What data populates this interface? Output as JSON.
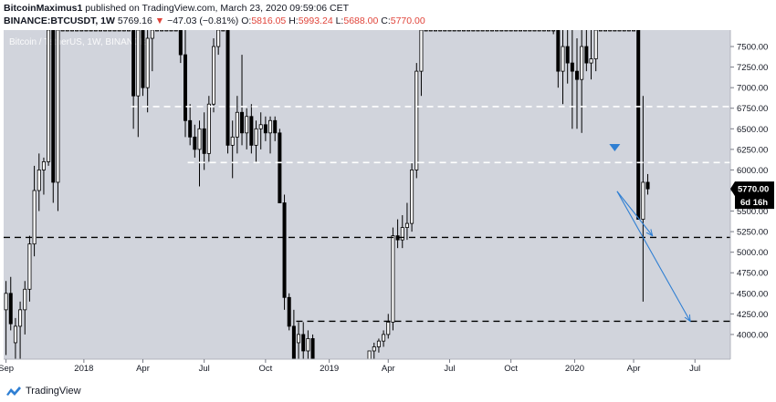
{
  "header": {
    "author": "BitcoinMaximus1",
    "published_text": "published on TradingView.com, March 23, 2020 09:59:06 CET",
    "symbol": "BINANCE:BTCUSDT, 1W",
    "last": "5769.16",
    "change": "−47.03 (−0.81%)",
    "open_label": "O:",
    "open": "5816.05",
    "high_label": "H:",
    "high": "5993.24",
    "low_label": "L:",
    "low": "5688.00",
    "close_label": "C:",
    "close": "5770.00"
  },
  "footer": {
    "brand": "TradingView",
    "logo_icon": "tradingview-logo-icon"
  },
  "colors": {
    "background": "#d1d4dc",
    "candle_border": "#000000",
    "up_fill": "#ffffff",
    "down_fill": "#000000",
    "arrow": "#2f7fd3",
    "white_level": "#ffffff",
    "black_level": "#000000",
    "price_label_bg": "#000000"
  },
  "chart_data": {
    "type": "candlestick",
    "watermark": "Bitcoin / TetherUS, 1W, BINANCE",
    "ylim": [
      3700,
      7700
    ],
    "y_ticks": [
      "7500.00",
      "7250.00",
      "7000.00",
      "6750.00",
      "6500.00",
      "6250.00",
      "6000.00",
      "5750.00",
      "5500.00",
      "5250.00",
      "5000.00",
      "4750.00",
      "4500.00",
      "4250.00",
      "4000.00"
    ],
    "x_range_weeks": [
      0,
      154
    ],
    "x_ticks": [
      {
        "label": "Sep",
        "week": 0.5
      },
      {
        "label": "2018",
        "week": 17
      },
      {
        "label": "Apr",
        "week": 29.5
      },
      {
        "label": "Jul",
        "week": 42.5
      },
      {
        "label": "Oct",
        "week": 55.5
      },
      {
        "label": "2019",
        "week": 69
      },
      {
        "label": "Apr",
        "week": 81.5
      },
      {
        "label": "Jul",
        "week": 94.5
      },
      {
        "label": "Oct",
        "week": 107.5
      },
      {
        "label": "2020",
        "week": 121
      },
      {
        "label": "Apr",
        "week": 133.5
      },
      {
        "label": "Jul",
        "week": 146.5
      }
    ],
    "current_price_label": "5770.00",
    "countdown_label": "6d 16h",
    "horizontal_levels": [
      {
        "price": 6770,
        "color": "white",
        "from_week": 27,
        "to_week": 154
      },
      {
        "price": 6090,
        "color": "white",
        "from_week": 39,
        "to_week": 154
      },
      {
        "price": 5180,
        "color": "black",
        "from_week": 0,
        "to_week": 154
      },
      {
        "price": 4160,
        "color": "black",
        "from_week": 62,
        "to_week": 154
      }
    ],
    "arrows": [
      {
        "from": [
          130,
          5740
        ],
        "to": [
          137.5,
          5200
        ]
      },
      {
        "from": [
          130,
          5740
        ],
        "to": [
          145.5,
          4160
        ]
      }
    ],
    "marker": {
      "week": 129.5,
      "price": 6270,
      "shape": "down-triangle"
    },
    "candles": [
      {
        "o": 4300,
        "h": 4650,
        "l": 3750,
        "c": 4500
      },
      {
        "o": 4500,
        "h": 4700,
        "l": 4050,
        "c": 4130
      },
      {
        "o": 3900,
        "h": 4200,
        "l": 3700,
        "c": 4100
      },
      {
        "o": 4100,
        "h": 4400,
        "l": 3700,
        "c": 4300
      },
      {
        "o": 4300,
        "h": 4650,
        "l": 4000,
        "c": 4550
      },
      {
        "o": 4550,
        "h": 5200,
        "l": 4400,
        "c": 5100
      },
      {
        "o": 5100,
        "h": 6050,
        "l": 4950,
        "c": 5750
      },
      {
        "o": 5750,
        "h": 6200,
        "l": 5500,
        "c": 6000
      },
      {
        "o": 6000,
        "h": 6150,
        "l": 5700,
        "c": 6100
      },
      {
        "o": 6100,
        "h": 7700,
        "l": 6050,
        "c": 7700
      },
      {
        "o": 7700,
        "h": 7700,
        "l": 5600,
        "c": 5850
      },
      {
        "o": 5850,
        "h": 7700,
        "l": 5500,
        "c": 7700
      },
      {
        "o": 7700,
        "h": 7700,
        "l": 7700,
        "c": 7700
      },
      {
        "o": 7700,
        "h": 7700,
        "l": 7700,
        "c": 7700
      },
      {
        "o": 7700,
        "h": 7700,
        "l": 7700,
        "c": 7700
      },
      {
        "o": 7700,
        "h": 7700,
        "l": 7700,
        "c": 7700
      },
      {
        "o": 7700,
        "h": 7700,
        "l": 7700,
        "c": 7700
      },
      {
        "o": 7700,
        "h": 7700,
        "l": 7700,
        "c": 7700
      },
      {
        "o": 7700,
        "h": 7700,
        "l": 7700,
        "c": 7700
      },
      {
        "o": 7700,
        "h": 7700,
        "l": 7700,
        "c": 7700
      },
      {
        "o": 7700,
        "h": 7700,
        "l": 7700,
        "c": 7700
      },
      {
        "o": 7700,
        "h": 7700,
        "l": 7700,
        "c": 7700
      },
      {
        "o": 7700,
        "h": 7700,
        "l": 7700,
        "c": 7700
      },
      {
        "o": 7700,
        "h": 7700,
        "l": 7700,
        "c": 7700
      },
      {
        "o": 7700,
        "h": 7700,
        "l": 7700,
        "c": 7700
      },
      {
        "o": 7700,
        "h": 7700,
        "l": 7700,
        "c": 7700
      },
      {
        "o": 7700,
        "h": 7700,
        "l": 7700,
        "c": 7700
      },
      {
        "o": 7700,
        "h": 7700,
        "l": 6500,
        "c": 6900
      },
      {
        "o": 6900,
        "h": 7700,
        "l": 6400,
        "c": 7700
      },
      {
        "o": 7700,
        "h": 7700,
        "l": 6900,
        "c": 7000
      },
      {
        "o": 7000,
        "h": 7700,
        "l": 6700,
        "c": 7600
      },
      {
        "o": 7600,
        "h": 7700,
        "l": 7200,
        "c": 7700
      },
      {
        "o": 7700,
        "h": 7700,
        "l": 7700,
        "c": 7700
      },
      {
        "o": 7700,
        "h": 7700,
        "l": 7700,
        "c": 7700
      },
      {
        "o": 7700,
        "h": 7700,
        "l": 7700,
        "c": 7700
      },
      {
        "o": 7700,
        "h": 7700,
        "l": 7700,
        "c": 7700
      },
      {
        "o": 7700,
        "h": 7700,
        "l": 7700,
        "c": 7700
      },
      {
        "o": 7700,
        "h": 7700,
        "l": 7300,
        "c": 7400
      },
      {
        "o": 7400,
        "h": 7700,
        "l": 6400,
        "c": 6600
      },
      {
        "o": 6600,
        "h": 6800,
        "l": 6300,
        "c": 6400
      },
      {
        "o": 6400,
        "h": 6550,
        "l": 6150,
        "c": 6250
      },
      {
        "o": 6250,
        "h": 6600,
        "l": 5800,
        "c": 6500
      },
      {
        "o": 6500,
        "h": 6700,
        "l": 6000,
        "c": 6200
      },
      {
        "o": 6200,
        "h": 6900,
        "l": 6100,
        "c": 6800
      },
      {
        "o": 6800,
        "h": 7600,
        "l": 6700,
        "c": 7500
      },
      {
        "o": 7500,
        "h": 7700,
        "l": 7400,
        "c": 7700
      },
      {
        "o": 7700,
        "h": 7700,
        "l": 7700,
        "c": 7700
      },
      {
        "o": 7700,
        "h": 7700,
        "l": 6200,
        "c": 6300
      },
      {
        "o": 6300,
        "h": 6600,
        "l": 5900,
        "c": 6400
      },
      {
        "o": 6400,
        "h": 6900,
        "l": 6200,
        "c": 6700
      },
      {
        "o": 6700,
        "h": 7400,
        "l": 6300,
        "c": 6450
      },
      {
        "o": 6450,
        "h": 6750,
        "l": 6250,
        "c": 6650
      },
      {
        "o": 6650,
        "h": 6800,
        "l": 6200,
        "c": 6300
      },
      {
        "o": 6300,
        "h": 6600,
        "l": 6100,
        "c": 6500
      },
      {
        "o": 6500,
        "h": 6700,
        "l": 6250,
        "c": 6550
      },
      {
        "o": 6550,
        "h": 6650,
        "l": 6350,
        "c": 6450
      },
      {
        "o": 6450,
        "h": 6650,
        "l": 6200,
        "c": 6600
      },
      {
        "o": 6600,
        "h": 6650,
        "l": 6350,
        "c": 6450
      },
      {
        "o": 6450,
        "h": 6500,
        "l": 5600,
        "c": 5600
      },
      {
        "o": 5600,
        "h": 5700,
        "l": 4300,
        "c": 4450
      },
      {
        "o": 4450,
        "h": 4500,
        "l": 4050,
        "c": 4100
      },
      {
        "o": 4100,
        "h": 4300,
        "l": 3700,
        "c": 3700
      },
      {
        "o": 3900,
        "h": 4150,
        "l": 3700,
        "c": 4000
      },
      {
        "o": 4000,
        "h": 4150,
        "l": 3700,
        "c": 3800
      },
      {
        "o": 3800,
        "h": 4050,
        "l": 3700,
        "c": 3950
      },
      {
        "o": 3950,
        "h": 4000,
        "l": 3700,
        "c": 3700
      },
      {
        "o": 3700,
        "h": 3700,
        "l": 3700,
        "c": 3700
      },
      {
        "o": 3700,
        "h": 3700,
        "l": 3700,
        "c": 3700
      },
      {
        "o": 3700,
        "h": 3700,
        "l": 3700,
        "c": 3700
      },
      {
        "o": 3700,
        "h": 3700,
        "l": 3700,
        "c": 3700
      },
      {
        "o": 3700,
        "h": 3700,
        "l": 3700,
        "c": 3700
      },
      {
        "o": 3700,
        "h": 3700,
        "l": 3700,
        "c": 3700
      },
      {
        "o": 3700,
        "h": 3700,
        "l": 3700,
        "c": 3700
      },
      {
        "o": 3700,
        "h": 3700,
        "l": 3700,
        "c": 3700
      },
      {
        "o": 3700,
        "h": 3700,
        "l": 3700,
        "c": 3700
      },
      {
        "o": 3700,
        "h": 3700,
        "l": 3700,
        "c": 3700
      },
      {
        "o": 3700,
        "h": 3700,
        "l": 3700,
        "c": 3700
      },
      {
        "o": 3700,
        "h": 3800,
        "l": 3700,
        "c": 3800
      },
      {
        "o": 3800,
        "h": 3900,
        "l": 3700,
        "c": 3850
      },
      {
        "o": 3850,
        "h": 3950,
        "l": 3780,
        "c": 3920
      },
      {
        "o": 3920,
        "h": 4050,
        "l": 3850,
        "c": 4000
      },
      {
        "o": 4000,
        "h": 4250,
        "l": 3950,
        "c": 4150
      },
      {
        "o": 4150,
        "h": 5300,
        "l": 4050,
        "c": 5200
      },
      {
        "o": 5200,
        "h": 5400,
        "l": 5050,
        "c": 5150
      },
      {
        "o": 5150,
        "h": 5450,
        "l": 5050,
        "c": 5300
      },
      {
        "o": 5300,
        "h": 5600,
        "l": 5150,
        "c": 5350
      },
      {
        "o": 5350,
        "h": 6100,
        "l": 5250,
        "c": 6000
      },
      {
        "o": 6000,
        "h": 7300,
        "l": 5900,
        "c": 7200
      },
      {
        "o": 7200,
        "h": 7700,
        "l": 6900,
        "c": 7700
      },
      {
        "o": 7700,
        "h": 7700,
        "l": 7700,
        "c": 7700
      },
      {
        "o": 7700,
        "h": 7700,
        "l": 7700,
        "c": 7700
      },
      {
        "o": 7700,
        "h": 7700,
        "l": 7700,
        "c": 7700
      },
      {
        "o": 7700,
        "h": 7700,
        "l": 7700,
        "c": 7700
      },
      {
        "o": 7700,
        "h": 7700,
        "l": 7700,
        "c": 7700
      },
      {
        "o": 7700,
        "h": 7700,
        "l": 7700,
        "c": 7700
      },
      {
        "o": 7700,
        "h": 7700,
        "l": 7700,
        "c": 7700
      },
      {
        "o": 7700,
        "h": 7700,
        "l": 7700,
        "c": 7700
      },
      {
        "o": 7700,
        "h": 7700,
        "l": 7700,
        "c": 7700
      },
      {
        "o": 7700,
        "h": 7700,
        "l": 7700,
        "c": 7700
      },
      {
        "o": 7700,
        "h": 7700,
        "l": 7700,
        "c": 7700
      },
      {
        "o": 7700,
        "h": 7700,
        "l": 7700,
        "c": 7700
      },
      {
        "o": 7700,
        "h": 7700,
        "l": 7700,
        "c": 7700
      },
      {
        "o": 7700,
        "h": 7700,
        "l": 7700,
        "c": 7700
      },
      {
        "o": 7700,
        "h": 7700,
        "l": 7700,
        "c": 7700
      },
      {
        "o": 7700,
        "h": 7700,
        "l": 7700,
        "c": 7700
      },
      {
        "o": 7700,
        "h": 7700,
        "l": 7700,
        "c": 7700
      },
      {
        "o": 7700,
        "h": 7700,
        "l": 7700,
        "c": 7700
      },
      {
        "o": 7700,
        "h": 7700,
        "l": 7700,
        "c": 7700
      },
      {
        "o": 7700,
        "h": 7700,
        "l": 7700,
        "c": 7700
      },
      {
        "o": 7700,
        "h": 7700,
        "l": 7700,
        "c": 7700
      },
      {
        "o": 7700,
        "h": 7700,
        "l": 7700,
        "c": 7700
      },
      {
        "o": 7700,
        "h": 7700,
        "l": 7700,
        "c": 7700
      },
      {
        "o": 7700,
        "h": 7700,
        "l": 7700,
        "c": 7700
      },
      {
        "o": 7700,
        "h": 7700,
        "l": 7700,
        "c": 7700
      },
      {
        "o": 7700,
        "h": 7700,
        "l": 7700,
        "c": 7700
      },
      {
        "o": 7700,
        "h": 7700,
        "l": 7700,
        "c": 7700
      },
      {
        "o": 7700,
        "h": 7700,
        "l": 7650,
        "c": 7700
      },
      {
        "o": 7700,
        "h": 7700,
        "l": 7000,
        "c": 7200
      },
      {
        "o": 7200,
        "h": 7700,
        "l": 6800,
        "c": 7500
      },
      {
        "o": 7500,
        "h": 7700,
        "l": 7050,
        "c": 7300
      },
      {
        "o": 7300,
        "h": 7700,
        "l": 6500,
        "c": 7200
      },
      {
        "o": 7200,
        "h": 7600,
        "l": 6500,
        "c": 7100
      },
      {
        "o": 7100,
        "h": 7700,
        "l": 6450,
        "c": 7500
      },
      {
        "o": 7500,
        "h": 7700,
        "l": 7200,
        "c": 7300
      },
      {
        "o": 7300,
        "h": 7700,
        "l": 7100,
        "c": 7350
      },
      {
        "o": 7350,
        "h": 7700,
        "l": 7200,
        "c": 7700
      },
      {
        "o": 7700,
        "h": 7700,
        "l": 7700,
        "c": 7700
      },
      {
        "o": 7700,
        "h": 7700,
        "l": 7700,
        "c": 7700
      },
      {
        "o": 7700,
        "h": 7700,
        "l": 7700,
        "c": 7700
      },
      {
        "o": 7700,
        "h": 7700,
        "l": 7700,
        "c": 7700
      },
      {
        "o": 7700,
        "h": 7700,
        "l": 7700,
        "c": 7700
      },
      {
        "o": 7700,
        "h": 7700,
        "l": 7700,
        "c": 7700
      },
      {
        "o": 7700,
        "h": 7700,
        "l": 7700,
        "c": 7700
      },
      {
        "o": 7700,
        "h": 7700,
        "l": 7700,
        "c": 7700
      },
      {
        "o": 7700,
        "h": 7700,
        "l": 5400,
        "c": 5400
      },
      {
        "o": 5400,
        "h": 6900,
        "l": 4400,
        "c": 5850
      },
      {
        "o": 5850,
        "h": 5950,
        "l": 5700,
        "c": 5770
      }
    ]
  }
}
